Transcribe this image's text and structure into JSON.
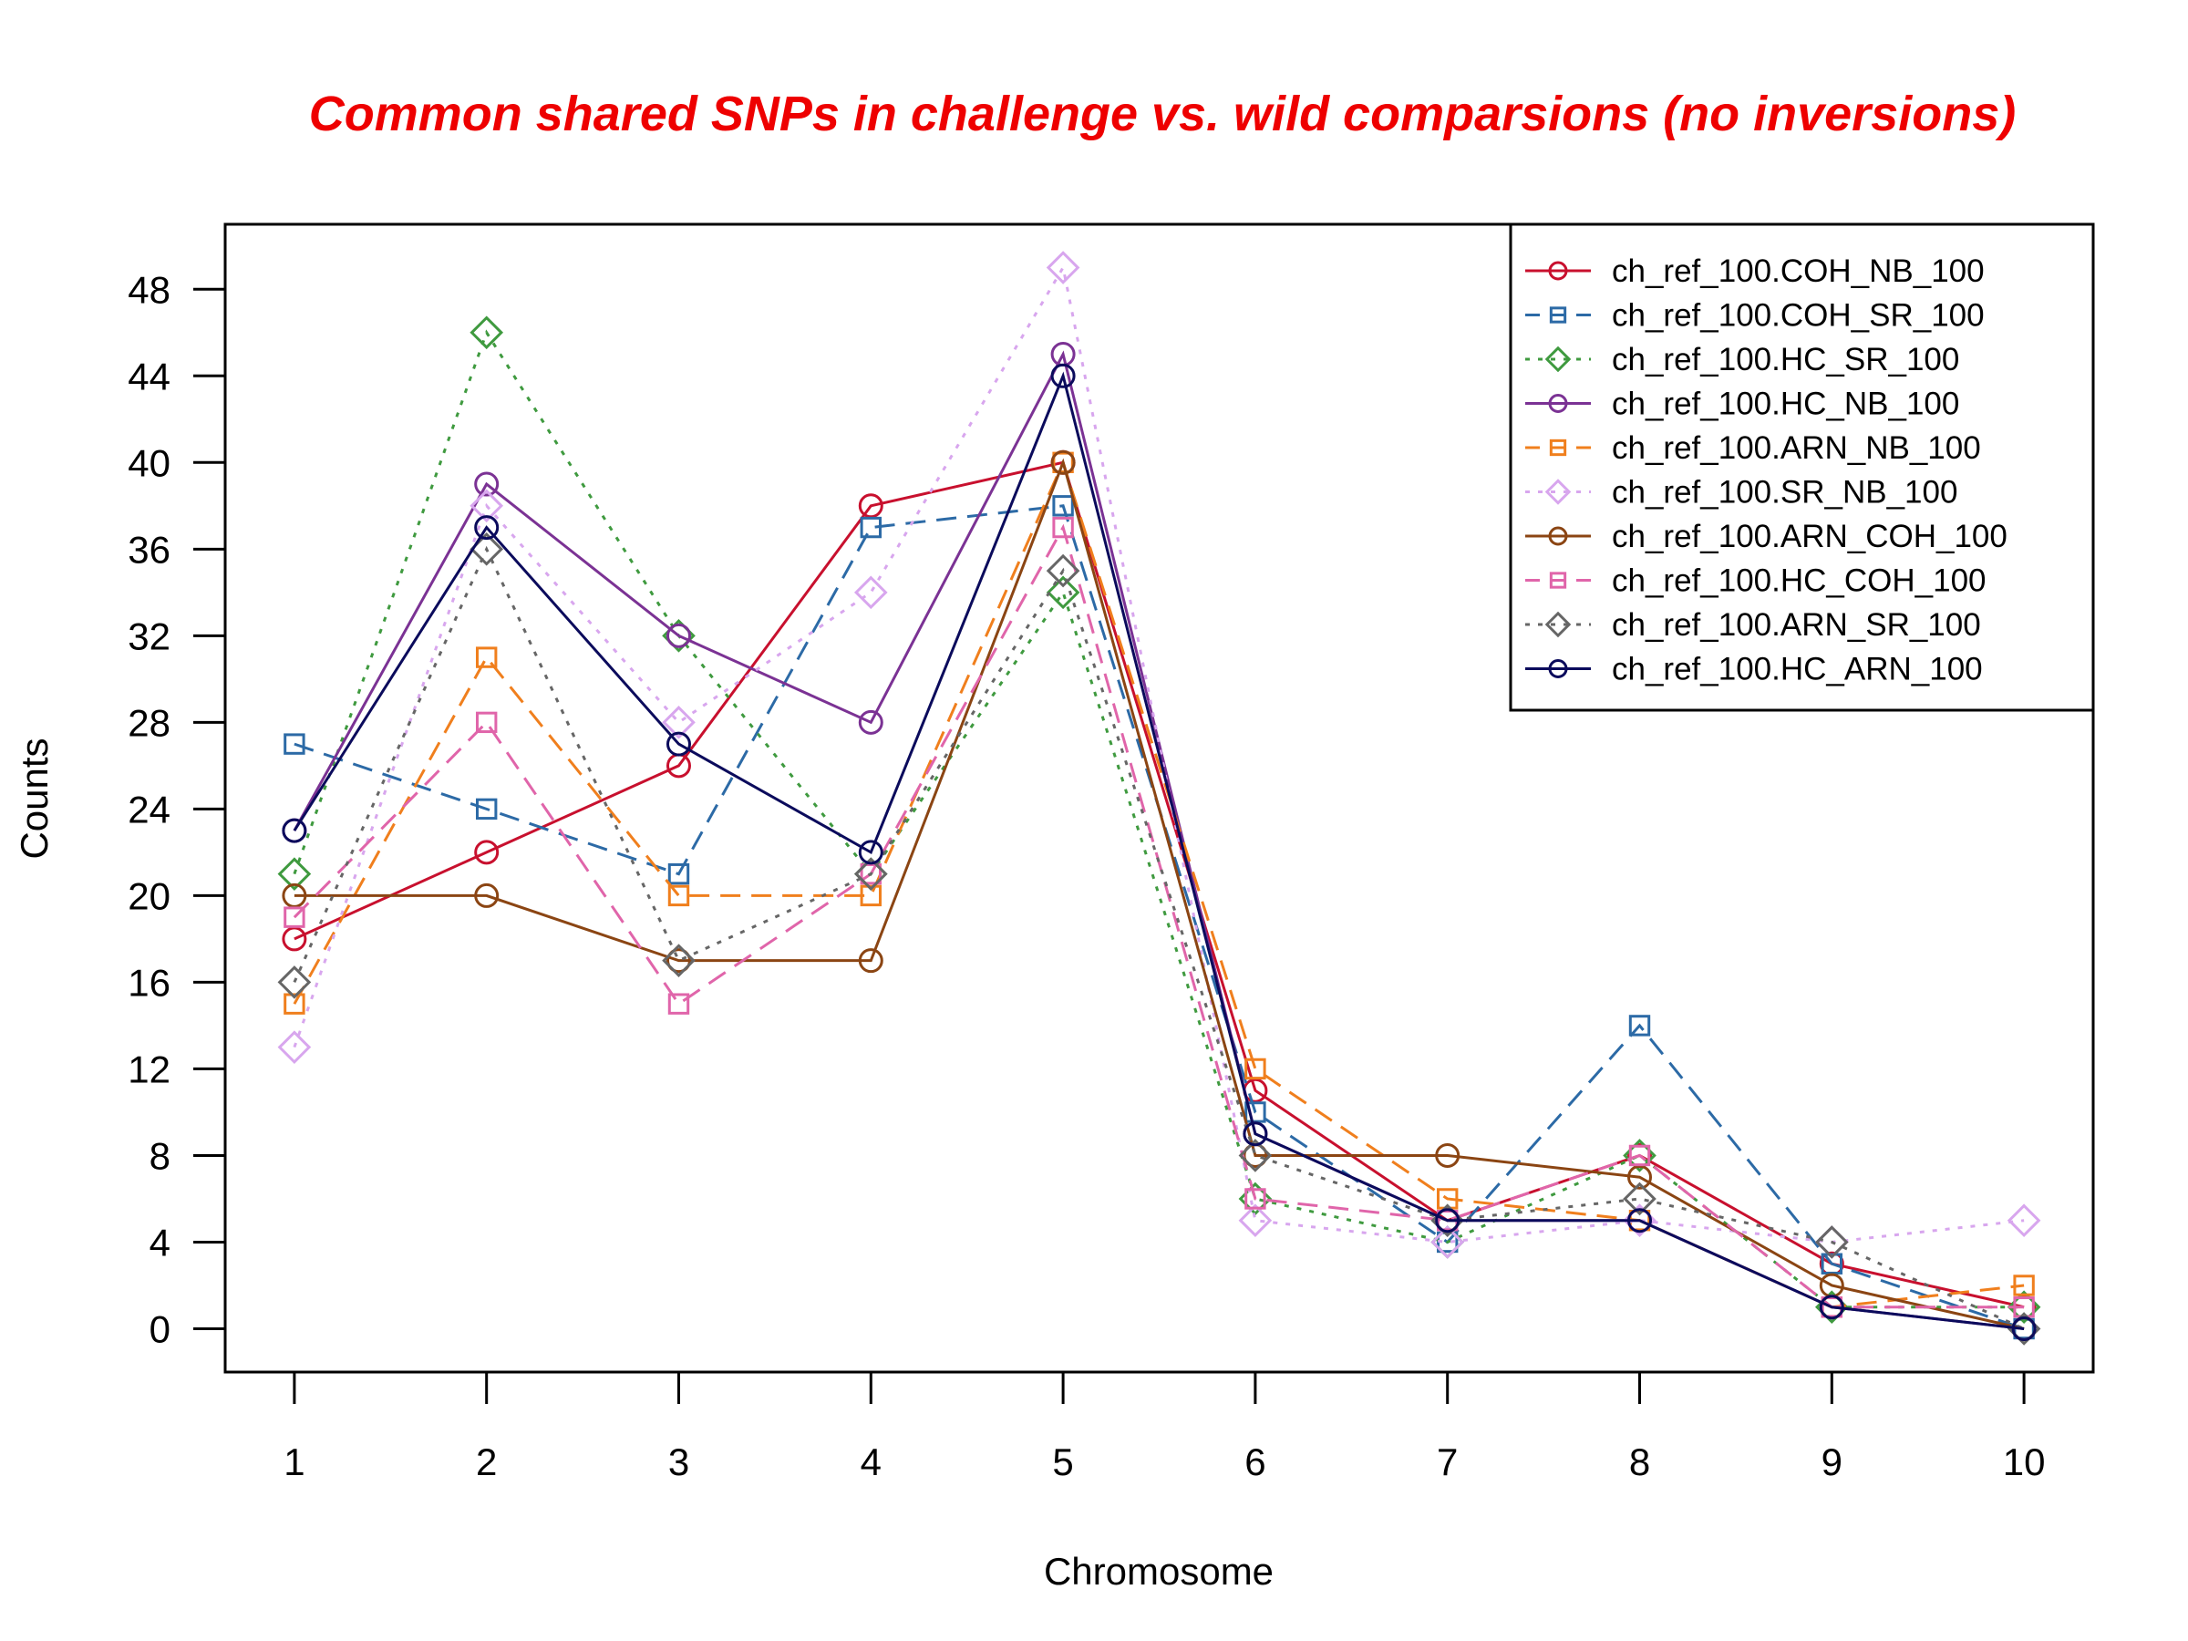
{
  "chart_data": {
    "type": "line",
    "title": "Common shared SNPs in challenge vs. wild comparsions (no inversions)",
    "xlabel": "Chromosome",
    "ylabel": "Counts",
    "x": [
      1,
      2,
      3,
      4,
      5,
      6,
      7,
      8,
      9,
      10
    ],
    "x_tick_labels": [
      "1",
      "2",
      "3",
      "4",
      "5",
      "6",
      "7",
      "8",
      "9",
      "10"
    ],
    "y_ticks": [
      0,
      4,
      8,
      12,
      16,
      20,
      24,
      28,
      32,
      36,
      40,
      44,
      48
    ],
    "xlim": [
      0.64,
      10.36
    ],
    "ylim": [
      -2,
      51
    ],
    "grid": false,
    "legend_position": "top-right",
    "series": [
      {
        "name": "ch_ref_100.COH_NB_100",
        "color": "#c8102e",
        "dash": "solid",
        "marker": "circle",
        "values": [
          18,
          22,
          26,
          38,
          40,
          11,
          5,
          8,
          3,
          1
        ]
      },
      {
        "name": "ch_ref_100.COH_SR_100",
        "color": "#2c6aa6",
        "dash": "dashed",
        "marker": "square",
        "values": [
          27,
          24,
          21,
          37,
          38,
          10,
          4,
          14,
          3,
          0
        ]
      },
      {
        "name": "ch_ref_100.HC_SR_100",
        "color": "#3f9a3f",
        "dash": "dotted",
        "marker": "diamond",
        "values": [
          21,
          46,
          32,
          21,
          34,
          6,
          4,
          8,
          1,
          1
        ]
      },
      {
        "name": "ch_ref_100.HC_NB_100",
        "color": "#7b3294",
        "dash": "solid",
        "marker": "circle",
        "values": [
          23,
          39,
          32,
          28,
          45,
          9,
          5,
          5,
          1,
          0
        ]
      },
      {
        "name": "ch_ref_100.ARN_NB_100",
        "color": "#f07f1d",
        "dash": "dashed",
        "marker": "square",
        "values": [
          15,
          31,
          20,
          20,
          40,
          12,
          6,
          5,
          1,
          2
        ]
      },
      {
        "name": "ch_ref_100.SR_NB_100",
        "color": "#d8a6ee",
        "dash": "dotted",
        "marker": "diamond",
        "values": [
          13,
          38,
          28,
          34,
          49,
          5,
          4,
          5,
          4,
          5
        ]
      },
      {
        "name": "ch_ref_100.ARN_COH_100",
        "color": "#8b4513",
        "dash": "solid",
        "marker": "circle",
        "values": [
          20,
          20,
          17,
          17,
          40,
          8,
          8,
          7,
          2,
          0
        ]
      },
      {
        "name": "ch_ref_100.HC_COH_100",
        "color": "#e065aa",
        "dash": "dashed",
        "marker": "square",
        "values": [
          19,
          28,
          15,
          21,
          37,
          6,
          5,
          8,
          1,
          1
        ]
      },
      {
        "name": "ch_ref_100.ARN_SR_100",
        "color": "#666666",
        "dash": "dotted",
        "marker": "diamond",
        "values": [
          16,
          36,
          17,
          21,
          35,
          8,
          5,
          6,
          4,
          0
        ]
      },
      {
        "name": "ch_ref_100.HC_ARN_100",
        "color": "#0b0b5c",
        "dash": "solid",
        "marker": "circle",
        "values": [
          23,
          37,
          27,
          22,
          44,
          9,
          5,
          5,
          1,
          0
        ]
      }
    ]
  }
}
